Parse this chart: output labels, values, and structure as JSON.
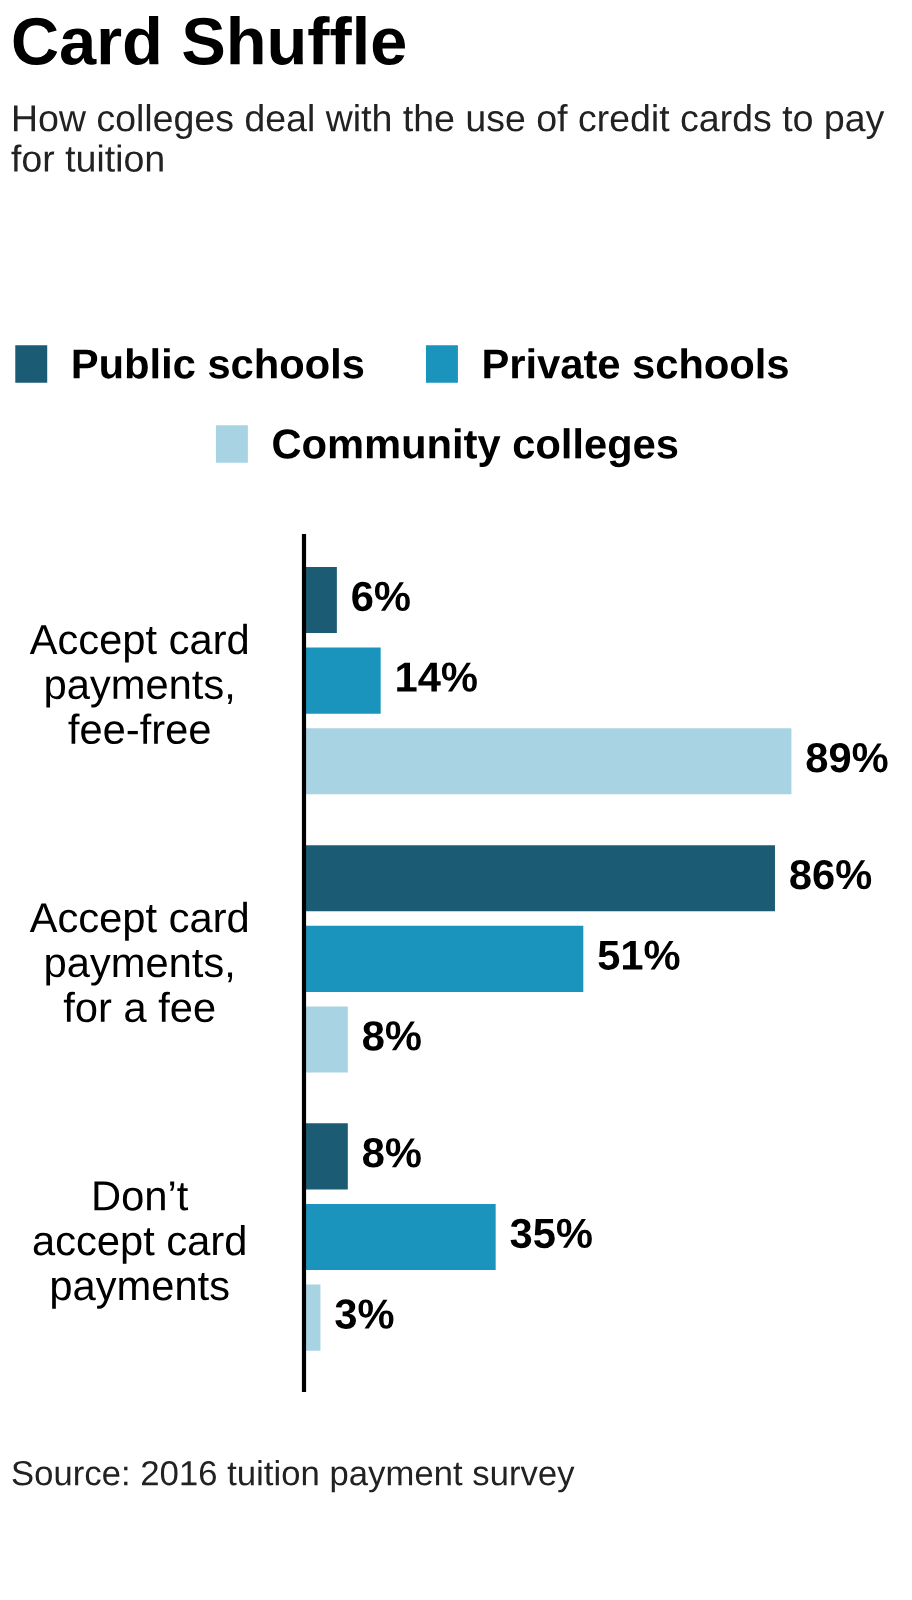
{
  "chart_data": {
    "type": "bar",
    "orientation": "horizontal",
    "title": "Card Shuffle",
    "subtitle": "How colleges deal with the use of credit cards to pay for tuition",
    "categories": [
      "Accept card\npayments,\nfee-free",
      "Accept card\npayments,\nfor a fee",
      "Don’t\naccept card\npayments"
    ],
    "series": [
      {
        "name": "Public schools",
        "color": "#1b5b74",
        "values": [
          6,
          86,
          8
        ],
        "value_labels": [
          "6%",
          "86%",
          "8%"
        ]
      },
      {
        "name": "Private schools",
        "color": "#1a94bc",
        "values": [
          14,
          51,
          35
        ],
        "value_labels": [
          "14%",
          "51%",
          "35%"
        ]
      },
      {
        "name": "Community colleges",
        "color": "#a8d3e3",
        "values": [
          89,
          8,
          3
        ],
        "value_labels": [
          "89%",
          "8%",
          "3%"
        ]
      }
    ],
    "legend": "top",
    "grid": false,
    "annotations": [
      "Source: 2016 tuition payment survey"
    ]
  }
}
